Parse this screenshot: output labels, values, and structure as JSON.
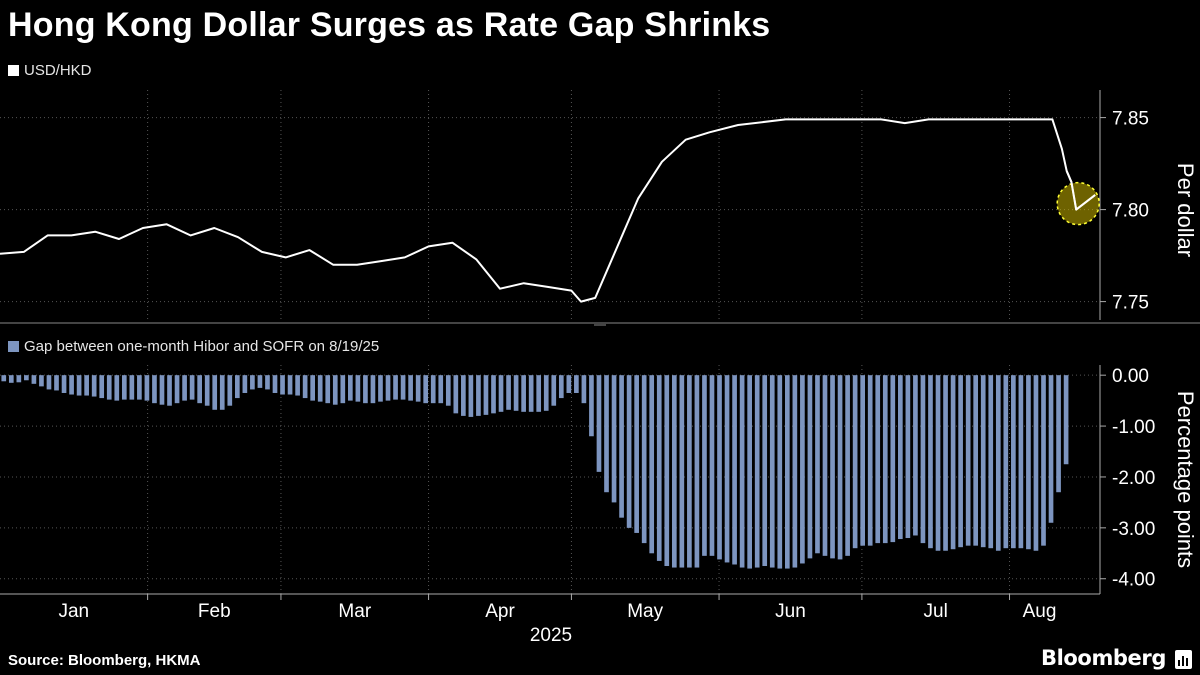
{
  "title": "Hong Kong Dollar Surges as Rate Gap Shrinks",
  "source": "Source: Bloomberg, HKMA",
  "brand": "Bloomberg",
  "colors": {
    "background": "#000000",
    "line": "#ffffff",
    "bars": "#7d95c0",
    "grid": "#555555",
    "highlight": "#c9b300"
  },
  "chart_data": [
    {
      "type": "line",
      "legend": "USD/HKD",
      "ylabel": "Per dollar",
      "ylim": [
        7.74,
        7.865
      ],
      "yticks": [
        7.75,
        7.8,
        7.85
      ],
      "ytick_labels": [
        "7.75",
        "7.80",
        "7.85"
      ],
      "grid": true,
      "legend_position": "top-left",
      "annotation": "highlight circle on latest value",
      "x": [
        "2025-01-01",
        "2025-01-06",
        "2025-01-11",
        "2025-01-16",
        "2025-01-21",
        "2025-01-26",
        "2025-01-31",
        "2025-02-05",
        "2025-02-10",
        "2025-02-15",
        "2025-02-20",
        "2025-02-25",
        "2025-03-02",
        "2025-03-07",
        "2025-03-12",
        "2025-03-17",
        "2025-03-22",
        "2025-03-27",
        "2025-04-01",
        "2025-04-06",
        "2025-04-11",
        "2025-04-16",
        "2025-04-21",
        "2025-04-26",
        "2025-05-01",
        "2025-05-03",
        "2025-05-06",
        "2025-05-09",
        "2025-05-12",
        "2025-05-15",
        "2025-05-20",
        "2025-05-25",
        "2025-05-30",
        "2025-06-05",
        "2025-06-15",
        "2025-06-25",
        "2025-07-05",
        "2025-07-10",
        "2025-07-15",
        "2025-07-25",
        "2025-08-01",
        "2025-08-05",
        "2025-08-08",
        "2025-08-10",
        "2025-08-12",
        "2025-08-13",
        "2025-08-14",
        "2025-08-15",
        "2025-08-19"
      ],
      "values": [
        7.776,
        7.777,
        7.786,
        7.786,
        7.788,
        7.784,
        7.79,
        7.792,
        7.786,
        7.79,
        7.785,
        7.777,
        7.774,
        7.778,
        7.77,
        7.77,
        7.772,
        7.774,
        7.78,
        7.782,
        7.773,
        7.757,
        7.76,
        7.758,
        7.756,
        7.75,
        7.752,
        7.77,
        7.788,
        7.806,
        7.826,
        7.838,
        7.842,
        7.846,
        7.849,
        7.849,
        7.849,
        7.847,
        7.849,
        7.849,
        7.849,
        7.849,
        7.849,
        7.849,
        7.833,
        7.821,
        7.815,
        7.8,
        7.808
      ]
    },
    {
      "type": "bar",
      "legend": "Gap between one-month Hibor and SOFR on 8/19/25",
      "ylabel": "Percentage points",
      "ylim": [
        -4.3,
        0.2
      ],
      "yticks": [
        0,
        -1,
        -2,
        -3,
        -4
      ],
      "ytick_labels": [
        "0.00",
        "-1.00",
        "-2.00",
        "-3.00",
        "-4.00"
      ],
      "grid": true,
      "legend_position": "top-left",
      "x_start": "2025-01-01",
      "x_end": "2025-08-19",
      "values": [
        -0.12,
        -0.15,
        -0.14,
        -0.1,
        -0.17,
        -0.22,
        -0.28,
        -0.3,
        -0.35,
        -0.38,
        -0.4,
        -0.4,
        -0.42,
        -0.45,
        -0.48,
        -0.5,
        -0.48,
        -0.48,
        -0.48,
        -0.5,
        -0.55,
        -0.58,
        -0.6,
        -0.55,
        -0.5,
        -0.48,
        -0.55,
        -0.6,
        -0.68,
        -0.68,
        -0.6,
        -0.45,
        -0.35,
        -0.28,
        -0.25,
        -0.28,
        -0.35,
        -0.38,
        -0.38,
        -0.4,
        -0.45,
        -0.5,
        -0.52,
        -0.55,
        -0.58,
        -0.55,
        -0.5,
        -0.52,
        -0.55,
        -0.55,
        -0.52,
        -0.5,
        -0.48,
        -0.48,
        -0.5,
        -0.52,
        -0.55,
        -0.55,
        -0.55,
        -0.6,
        -0.75,
        -0.8,
        -0.82,
        -0.8,
        -0.78,
        -0.75,
        -0.72,
        -0.68,
        -0.7,
        -0.72,
        -0.72,
        -0.72,
        -0.7,
        -0.6,
        -0.45,
        -0.35,
        -0.35,
        -0.55,
        -1.2,
        -1.9,
        -2.3,
        -2.5,
        -2.8,
        -3.0,
        -3.1,
        -3.3,
        -3.5,
        -3.65,
        -3.75,
        -3.78,
        -3.78,
        -3.78,
        -3.78,
        -3.55,
        -3.55,
        -3.62,
        -3.68,
        -3.72,
        -3.78,
        -3.8,
        -3.78,
        -3.75,
        -3.78,
        -3.8,
        -3.8,
        -3.78,
        -3.7,
        -3.6,
        -3.5,
        -3.55,
        -3.6,
        -3.62,
        -3.55,
        -3.4,
        -3.35,
        -3.35,
        -3.3,
        -3.3,
        -3.28,
        -3.22,
        -3.2,
        -3.15,
        -3.3,
        -3.4,
        -3.45,
        -3.45,
        -3.42,
        -3.38,
        -3.35,
        -3.35,
        -3.38,
        -3.4,
        -3.45,
        -3.4,
        -3.4,
        -3.4,
        -3.42,
        -3.45,
        -3.35,
        -2.9,
        -2.3,
        -1.75
      ]
    }
  ],
  "x_axis": {
    "month_labels": [
      "Jan",
      "Feb",
      "Mar",
      "Apr",
      "May",
      "Jun",
      "Jul",
      "Aug"
    ],
    "year_label": "2025"
  }
}
